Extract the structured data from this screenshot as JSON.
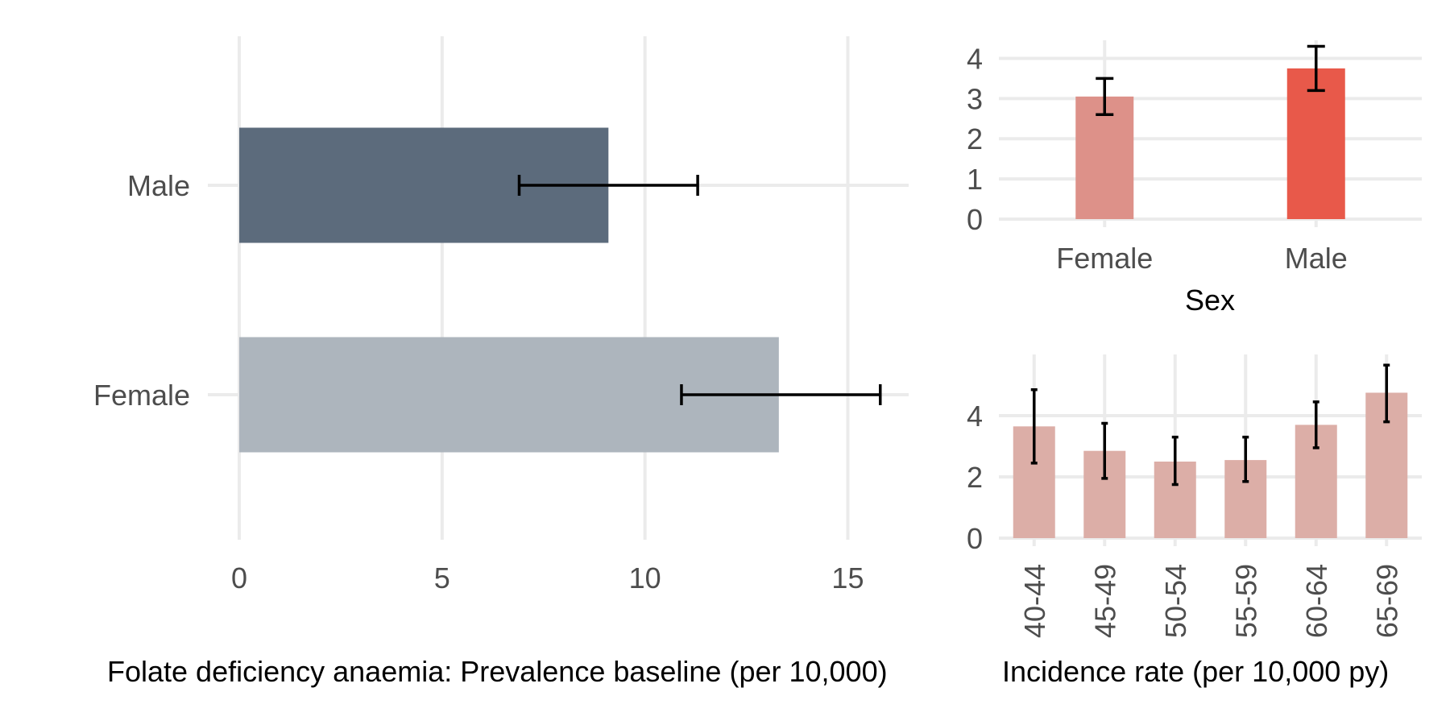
{
  "chart_data": [
    {
      "type": "bar",
      "orientation": "horizontal",
      "title": "Folate deficiency anaemia: Prevalence baseline (per 10,000)",
      "categories": [
        "Male",
        "Female"
      ],
      "values": [
        9.1,
        13.3
      ],
      "error_low": [
        6.9,
        10.9
      ],
      "error_high": [
        11.3,
        15.8
      ],
      "colors": [
        "#5c6b7c",
        "#adb5bd"
      ],
      "xlim": [
        0,
        16.5
      ],
      "xticks": [
        "0",
        "5",
        "10",
        "15"
      ]
    },
    {
      "type": "bar",
      "title": "",
      "xlabel": "Sex",
      "categories": [
        "Female",
        "Male"
      ],
      "values": [
        3.05,
        3.75
      ],
      "error_low": [
        2.6,
        3.2
      ],
      "error_high": [
        3.5,
        4.3
      ],
      "colors": [
        "#dd9189",
        "#e8594a"
      ],
      "ylim": [
        0,
        4.45
      ],
      "yticks": [
        "0",
        "1",
        "2",
        "3",
        "4"
      ]
    },
    {
      "type": "bar",
      "title": "Incidence rate (per 10,000 py)",
      "categories": [
        "40-44",
        "45-49",
        "50-54",
        "55-59",
        "60-64",
        "65-69"
      ],
      "values": [
        3.65,
        2.85,
        2.5,
        2.55,
        3.7,
        4.75
      ],
      "error_low": [
        2.45,
        1.95,
        1.75,
        1.85,
        2.95,
        3.8
      ],
      "error_high": [
        4.85,
        3.75,
        3.3,
        3.3,
        4.45,
        5.65
      ],
      "colors": [
        "#dcaea7"
      ],
      "ylim": [
        0,
        6.0
      ],
      "yticks": [
        "0",
        "2",
        "4"
      ]
    }
  ]
}
